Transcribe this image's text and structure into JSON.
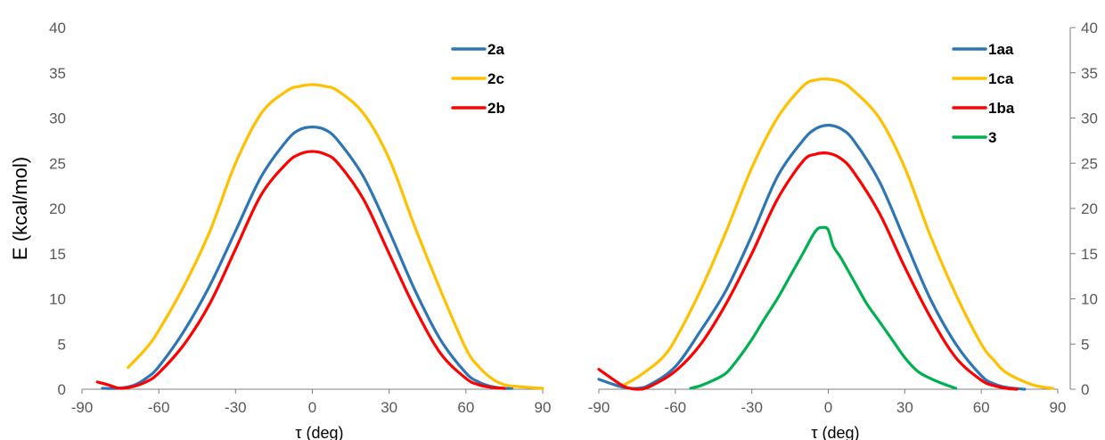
{
  "chart_data": [
    {
      "type": "line",
      "xlabel": "τ (deg)",
      "ylabel": "E (kcal/mol)",
      "xlim": [
        -90,
        90
      ],
      "ylim": [
        0,
        40
      ],
      "x_ticks": [
        "-90",
        "-60",
        "-30",
        "0",
        "30",
        "60",
        "90"
      ],
      "y_ticks": [
        "0",
        "5",
        "10",
        "15",
        "20",
        "25",
        "30",
        "35",
        "40"
      ],
      "y_axis_side": "left",
      "grid": false,
      "legend_position": "top-right",
      "series": [
        {
          "name": "2a",
          "color": "#2E75B6",
          "x": [
            -82,
            -76,
            -70,
            -65,
            -60,
            -50,
            -40,
            -30,
            -20,
            -10,
            -5,
            0,
            5,
            10,
            20,
            30,
            40,
            50,
            60,
            65,
            70,
            75,
            78
          ],
          "y": [
            0.1,
            0.1,
            0.4,
            1.2,
            2.5,
            6.5,
            11.5,
            17.5,
            23.5,
            27.5,
            28.7,
            29.0,
            28.7,
            27.5,
            23.5,
            17.5,
            11.0,
            5.5,
            1.8,
            0.8,
            0.3,
            0.1,
            0.1
          ]
        },
        {
          "name": "2c",
          "color": "#FFC000",
          "x": [
            -72,
            -65,
            -60,
            -50,
            -40,
            -30,
            -20,
            -10,
            -5,
            0,
            5,
            10,
            20,
            30,
            40,
            50,
            60,
            65,
            70,
            75,
            80,
            85,
            90
          ],
          "y": [
            2.4,
            4.5,
            6.5,
            11.5,
            17.5,
            25.0,
            30.5,
            33.0,
            33.5,
            33.7,
            33.5,
            33.0,
            30.5,
            25.5,
            18.0,
            11.0,
            4.5,
            2.5,
            1.2,
            0.5,
            0.3,
            0.2,
            0.1
          ]
        },
        {
          "name": "2b",
          "color": "#FF0000",
          "x": [
            -84,
            -80,
            -75,
            -70,
            -65,
            -60,
            -50,
            -40,
            -30,
            -20,
            -10,
            -5,
            0,
            5,
            10,
            20,
            30,
            40,
            50,
            60,
            65,
            70,
            75
          ],
          "y": [
            0.8,
            0.5,
            0.1,
            0.3,
            0.8,
            1.8,
            5.0,
            9.5,
            15.5,
            21.5,
            25.0,
            26.0,
            26.3,
            26.0,
            25.0,
            21.0,
            15.0,
            9.0,
            4.0,
            1.2,
            0.5,
            0.2,
            0.1
          ]
        }
      ]
    },
    {
      "type": "line",
      "xlabel": "τ (deg)",
      "ylabel": "",
      "xlim": [
        -90,
        90
      ],
      "ylim": [
        0,
        40
      ],
      "x_ticks": [
        "-90",
        "-60",
        "-30",
        "0",
        "30",
        "60",
        "90"
      ],
      "y_ticks": [
        "0",
        "5",
        "10",
        "15",
        "20",
        "25",
        "30",
        "35",
        "40"
      ],
      "y_axis_side": "right",
      "grid": false,
      "legend_position": "top-right",
      "series": [
        {
          "name": "1aa",
          "color": "#2E75B6",
          "x": [
            -90,
            -85,
            -80,
            -75,
            -70,
            -60,
            -50,
            -40,
            -30,
            -20,
            -10,
            -5,
            0,
            5,
            10,
            20,
            30,
            40,
            50,
            60,
            65,
            70,
            77
          ],
          "y": [
            1.1,
            0.6,
            0.2,
            0.1,
            0.5,
            2.5,
            6.5,
            11.0,
            17.0,
            23.5,
            27.5,
            28.8,
            29.2,
            28.8,
            27.5,
            23.0,
            16.5,
            10.0,
            5.0,
            1.5,
            0.6,
            0.2,
            0.0
          ]
        },
        {
          "name": "1ca",
          "color": "#FFC000",
          "x": [
            -80,
            -75,
            -70,
            -65,
            -60,
            -50,
            -40,
            -30,
            -20,
            -10,
            -5,
            0,
            5,
            10,
            20,
            30,
            40,
            50,
            60,
            65,
            70,
            80,
            88
          ],
          "y": [
            0.5,
            1.3,
            2.3,
            3.5,
            5.5,
            11.0,
            17.5,
            24.5,
            30.0,
            33.5,
            34.2,
            34.3,
            34.0,
            33.0,
            30.0,
            24.5,
            17.0,
            10.5,
            5.0,
            3.2,
            1.8,
            0.5,
            0.1
          ]
        },
        {
          "name": "1ba",
          "color": "#FF0000",
          "x": [
            -90,
            -85,
            -80,
            -75,
            -70,
            -60,
            -50,
            -40,
            -30,
            -20,
            -10,
            -5,
            0,
            5,
            10,
            20,
            30,
            40,
            50,
            60,
            65,
            70,
            74
          ],
          "y": [
            2.2,
            1.2,
            0.3,
            0.0,
            0.3,
            2.0,
            5.0,
            9.5,
            15.0,
            21.0,
            25.2,
            26.0,
            26.1,
            25.5,
            24.0,
            19.5,
            13.5,
            8.0,
            3.5,
            1.0,
            0.4,
            0.1,
            0.0
          ]
        },
        {
          "name": "3",
          "color": "#00B050",
          "x": [
            -54,
            -50,
            -45,
            -40,
            -35,
            -30,
            -25,
            -20,
            -15,
            -10,
            -5,
            -2,
            0,
            2,
            5,
            10,
            15,
            20,
            25,
            30,
            35,
            40,
            45,
            50
          ],
          "y": [
            0.1,
            0.4,
            1.0,
            1.8,
            3.5,
            5.5,
            7.8,
            10.0,
            12.5,
            15.0,
            17.5,
            17.9,
            17.6,
            15.8,
            14.5,
            12.0,
            9.5,
            7.5,
            5.5,
            3.5,
            2.0,
            1.2,
            0.6,
            0.1
          ]
        }
      ]
    }
  ]
}
